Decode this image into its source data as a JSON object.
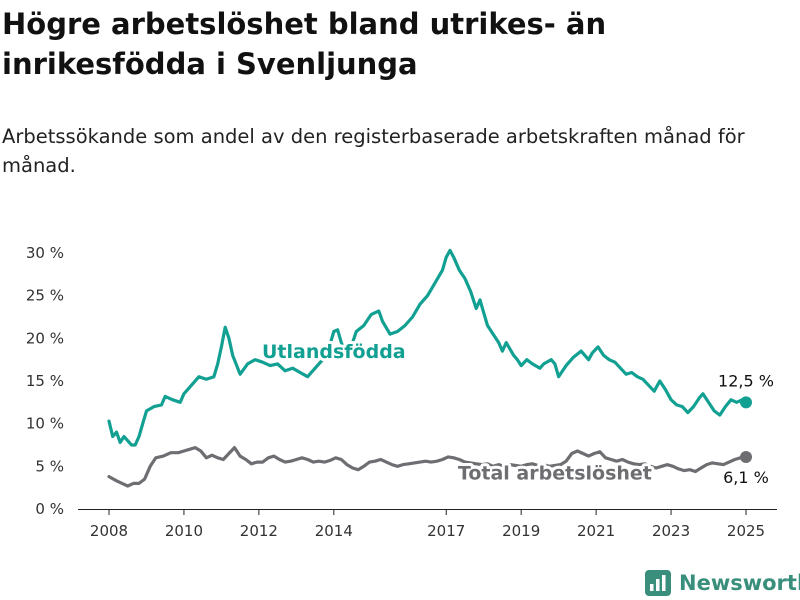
{
  "title": "Högre arbetslöshet bland utrikes- än inrikesfödda i Svenljunga",
  "subtitle": "Arbetssökande som andel av den registerbaserade arbetskraften månad för månad.",
  "brand": "Newsworthy",
  "colors": {
    "foreign": "#11a091",
    "total": "#6e6e72",
    "axis": "#222222"
  },
  "chart_data": {
    "type": "line",
    "title": "Högre arbetslöshet bland utrikes- än inrikesfödda i Svenljunga",
    "xlabel": "",
    "ylabel": "",
    "xlim": [
      2008.0,
      2025.25
    ],
    "ylim": [
      0,
      30
    ],
    "grid": false,
    "x_ticks": [
      2008,
      2010,
      2012,
      2014,
      2017,
      2019,
      2021,
      2023,
      2025
    ],
    "x_tick_labels": [
      "2008",
      "2010",
      "2012",
      "2014",
      "2017",
      "2019",
      "2021",
      "2023",
      "2025"
    ],
    "y_ticks": [
      0,
      5,
      10,
      15,
      20,
      25,
      30
    ],
    "y_tick_labels": [
      "0 %",
      "5 %",
      "10 %",
      "15 %",
      "20 %",
      "25 %",
      "30 %"
    ],
    "series": [
      {
        "name": "Utlandsfödda",
        "color": "#11a091",
        "end_label": "12,5 %",
        "points": [
          [
            2008.0,
            10.3
          ],
          [
            2008.1,
            8.5
          ],
          [
            2008.2,
            9.0
          ],
          [
            2008.3,
            7.8
          ],
          [
            2008.4,
            8.5
          ],
          [
            2008.5,
            8.0
          ],
          [
            2008.6,
            7.5
          ],
          [
            2008.7,
            7.5
          ],
          [
            2008.8,
            8.5
          ],
          [
            2008.9,
            10.0
          ],
          [
            2009.0,
            11.5
          ],
          [
            2009.2,
            12.0
          ],
          [
            2009.4,
            12.2
          ],
          [
            2009.5,
            13.2
          ],
          [
            2009.7,
            12.8
          ],
          [
            2009.9,
            12.5
          ],
          [
            2010.0,
            13.5
          ],
          [
            2010.2,
            14.5
          ],
          [
            2010.4,
            15.5
          ],
          [
            2010.6,
            15.2
          ],
          [
            2010.8,
            15.5
          ],
          [
            2010.9,
            17.0
          ],
          [
            2011.0,
            19.0
          ],
          [
            2011.1,
            21.3
          ],
          [
            2011.2,
            20.0
          ],
          [
            2011.3,
            18.0
          ],
          [
            2011.5,
            15.8
          ],
          [
            2011.7,
            17.0
          ],
          [
            2011.9,
            17.5
          ],
          [
            2012.1,
            17.2
          ],
          [
            2012.3,
            16.8
          ],
          [
            2012.5,
            17.0
          ],
          [
            2012.7,
            16.2
          ],
          [
            2012.9,
            16.5
          ],
          [
            2013.1,
            16.0
          ],
          [
            2013.3,
            15.5
          ],
          [
            2013.5,
            16.5
          ],
          [
            2013.7,
            17.5
          ],
          [
            2013.8,
            18.8
          ],
          [
            2013.9,
            19.3
          ],
          [
            2014.0,
            20.8
          ],
          [
            2014.1,
            21.0
          ],
          [
            2014.2,
            19.5
          ],
          [
            2014.3,
            18.5
          ],
          [
            2014.4,
            18.0
          ],
          [
            2014.5,
            19.5
          ],
          [
            2014.6,
            20.8
          ],
          [
            2014.8,
            21.5
          ],
          [
            2015.0,
            22.8
          ],
          [
            2015.2,
            23.2
          ],
          [
            2015.3,
            22.0
          ],
          [
            2015.5,
            20.5
          ],
          [
            2015.7,
            20.8
          ],
          [
            2015.9,
            21.5
          ],
          [
            2016.1,
            22.5
          ],
          [
            2016.3,
            24.0
          ],
          [
            2016.5,
            25.0
          ],
          [
            2016.7,
            26.5
          ],
          [
            2016.9,
            28.0
          ],
          [
            2017.0,
            29.5
          ],
          [
            2017.1,
            30.3
          ],
          [
            2017.2,
            29.5
          ],
          [
            2017.35,
            28.0
          ],
          [
            2017.5,
            27.0
          ],
          [
            2017.65,
            25.5
          ],
          [
            2017.8,
            23.5
          ],
          [
            2017.9,
            24.5
          ],
          [
            2018.0,
            23.0
          ],
          [
            2018.1,
            21.5
          ],
          [
            2018.25,
            20.5
          ],
          [
            2018.4,
            19.5
          ],
          [
            2018.5,
            18.5
          ],
          [
            2018.6,
            19.5
          ],
          [
            2018.8,
            18.0
          ],
          [
            2018.9,
            17.5
          ],
          [
            2019.0,
            16.8
          ],
          [
            2019.15,
            17.5
          ],
          [
            2019.3,
            17.0
          ],
          [
            2019.5,
            16.5
          ],
          [
            2019.6,
            17.0
          ],
          [
            2019.8,
            17.5
          ],
          [
            2019.9,
            17.0
          ],
          [
            2020.0,
            15.5
          ],
          [
            2020.2,
            16.8
          ],
          [
            2020.4,
            17.8
          ],
          [
            2020.6,
            18.5
          ],
          [
            2020.8,
            17.5
          ],
          [
            2020.9,
            18.3
          ],
          [
            2021.05,
            19.0
          ],
          [
            2021.2,
            18.0
          ],
          [
            2021.35,
            17.5
          ],
          [
            2021.5,
            17.2
          ],
          [
            2021.65,
            16.5
          ],
          [
            2021.8,
            15.8
          ],
          [
            2021.95,
            16.0
          ],
          [
            2022.1,
            15.5
          ],
          [
            2022.25,
            15.2
          ],
          [
            2022.4,
            14.5
          ],
          [
            2022.55,
            13.8
          ],
          [
            2022.7,
            15.0
          ],
          [
            2022.85,
            14.0
          ],
          [
            2023.0,
            12.8
          ],
          [
            2023.15,
            12.2
          ],
          [
            2023.3,
            12.0
          ],
          [
            2023.45,
            11.3
          ],
          [
            2023.6,
            12.0
          ],
          [
            2023.75,
            13.0
          ],
          [
            2023.85,
            13.5
          ],
          [
            2024.0,
            12.5
          ],
          [
            2024.15,
            11.5
          ],
          [
            2024.3,
            11.0
          ],
          [
            2024.45,
            12.0
          ],
          [
            2024.6,
            12.8
          ],
          [
            2024.75,
            12.5
          ],
          [
            2024.9,
            12.8
          ],
          [
            2025.0,
            12.5
          ]
        ]
      },
      {
        "name": "Total arbetslöshet",
        "color": "#6e6e72",
        "end_label": "6,1 %",
        "points": [
          [
            2008.0,
            3.8
          ],
          [
            2008.2,
            3.3
          ],
          [
            2008.35,
            3.0
          ],
          [
            2008.5,
            2.7
          ],
          [
            2008.65,
            3.0
          ],
          [
            2008.8,
            3.0
          ],
          [
            2008.95,
            3.5
          ],
          [
            2009.1,
            5.0
          ],
          [
            2009.25,
            6.0
          ],
          [
            2009.45,
            6.2
          ],
          [
            2009.65,
            6.6
          ],
          [
            2009.85,
            6.6
          ],
          [
            2010.0,
            6.8
          ],
          [
            2010.15,
            7.0
          ],
          [
            2010.3,
            7.2
          ],
          [
            2010.45,
            6.8
          ],
          [
            2010.6,
            6.0
          ],
          [
            2010.75,
            6.3
          ],
          [
            2010.9,
            6.0
          ],
          [
            2011.05,
            5.8
          ],
          [
            2011.2,
            6.5
          ],
          [
            2011.35,
            7.2
          ],
          [
            2011.5,
            6.2
          ],
          [
            2011.65,
            5.8
          ],
          [
            2011.8,
            5.3
          ],
          [
            2011.95,
            5.5
          ],
          [
            2012.1,
            5.5
          ],
          [
            2012.25,
            6.0
          ],
          [
            2012.4,
            6.2
          ],
          [
            2012.55,
            5.8
          ],
          [
            2012.7,
            5.5
          ],
          [
            2012.85,
            5.6
          ],
          [
            2013.0,
            5.8
          ],
          [
            2013.15,
            6.0
          ],
          [
            2013.3,
            5.8
          ],
          [
            2013.45,
            5.5
          ],
          [
            2013.6,
            5.6
          ],
          [
            2013.75,
            5.5
          ],
          [
            2013.9,
            5.7
          ],
          [
            2014.05,
            6.0
          ],
          [
            2014.2,
            5.8
          ],
          [
            2014.35,
            5.2
          ],
          [
            2014.5,
            4.8
          ],
          [
            2014.65,
            4.6
          ],
          [
            2014.8,
            5.0
          ],
          [
            2014.95,
            5.5
          ],
          [
            2015.1,
            5.6
          ],
          [
            2015.25,
            5.8
          ],
          [
            2015.4,
            5.5
          ],
          [
            2015.55,
            5.2
          ],
          [
            2015.7,
            5.0
          ],
          [
            2015.85,
            5.2
          ],
          [
            2016.0,
            5.3
          ],
          [
            2016.15,
            5.4
          ],
          [
            2016.3,
            5.5
          ],
          [
            2016.45,
            5.6
          ],
          [
            2016.6,
            5.5
          ],
          [
            2016.75,
            5.6
          ],
          [
            2016.9,
            5.8
          ],
          [
            2017.05,
            6.1
          ],
          [
            2017.2,
            6.0
          ],
          [
            2017.35,
            5.8
          ],
          [
            2017.5,
            5.5
          ],
          [
            2017.65,
            5.4
          ],
          [
            2017.8,
            5.3
          ],
          [
            2017.95,
            5.2
          ],
          [
            2018.1,
            5.3
          ],
          [
            2018.25,
            5.0
          ],
          [
            2018.4,
            5.2
          ],
          [
            2018.55,
            5.0
          ],
          [
            2018.7,
            5.2
          ],
          [
            2018.85,
            5.1
          ],
          [
            2019.0,
            5.0
          ],
          [
            2019.15,
            5.2
          ],
          [
            2019.3,
            5.3
          ],
          [
            2019.45,
            5.1
          ],
          [
            2019.6,
            5.2
          ],
          [
            2019.75,
            5.0
          ],
          [
            2019.9,
            5.1
          ],
          [
            2020.05,
            5.2
          ],
          [
            2020.2,
            5.6
          ],
          [
            2020.35,
            6.5
          ],
          [
            2020.5,
            6.8
          ],
          [
            2020.65,
            6.5
          ],
          [
            2020.8,
            6.2
          ],
          [
            2020.95,
            6.5
          ],
          [
            2021.1,
            6.7
          ],
          [
            2021.25,
            6.0
          ],
          [
            2021.4,
            5.8
          ],
          [
            2021.55,
            5.6
          ],
          [
            2021.7,
            5.8
          ],
          [
            2021.85,
            5.5
          ],
          [
            2022.0,
            5.3
          ],
          [
            2022.15,
            5.2
          ],
          [
            2022.3,
            5.3
          ],
          [
            2022.45,
            5.0
          ],
          [
            2022.6,
            4.8
          ],
          [
            2022.75,
            5.0
          ],
          [
            2022.9,
            5.2
          ],
          [
            2023.05,
            5.0
          ],
          [
            2023.2,
            4.7
          ],
          [
            2023.35,
            4.5
          ],
          [
            2023.5,
            4.6
          ],
          [
            2023.65,
            4.4
          ],
          [
            2023.8,
            4.8
          ],
          [
            2023.95,
            5.2
          ],
          [
            2024.1,
            5.4
          ],
          [
            2024.25,
            5.3
          ],
          [
            2024.4,
            5.2
          ],
          [
            2024.55,
            5.5
          ],
          [
            2024.7,
            5.8
          ],
          [
            2024.85,
            6.0
          ],
          [
            2025.0,
            6.1
          ]
        ]
      }
    ],
    "annotations": [
      {
        "text": "Utlandsfödda",
        "series": "Utlandsfödda",
        "x": 2014.0,
        "y": 18.5
      },
      {
        "text": "Total arbetslöshet",
        "series": "Total arbetslöshet",
        "x": 2019.9,
        "y": 4.3
      }
    ]
  }
}
